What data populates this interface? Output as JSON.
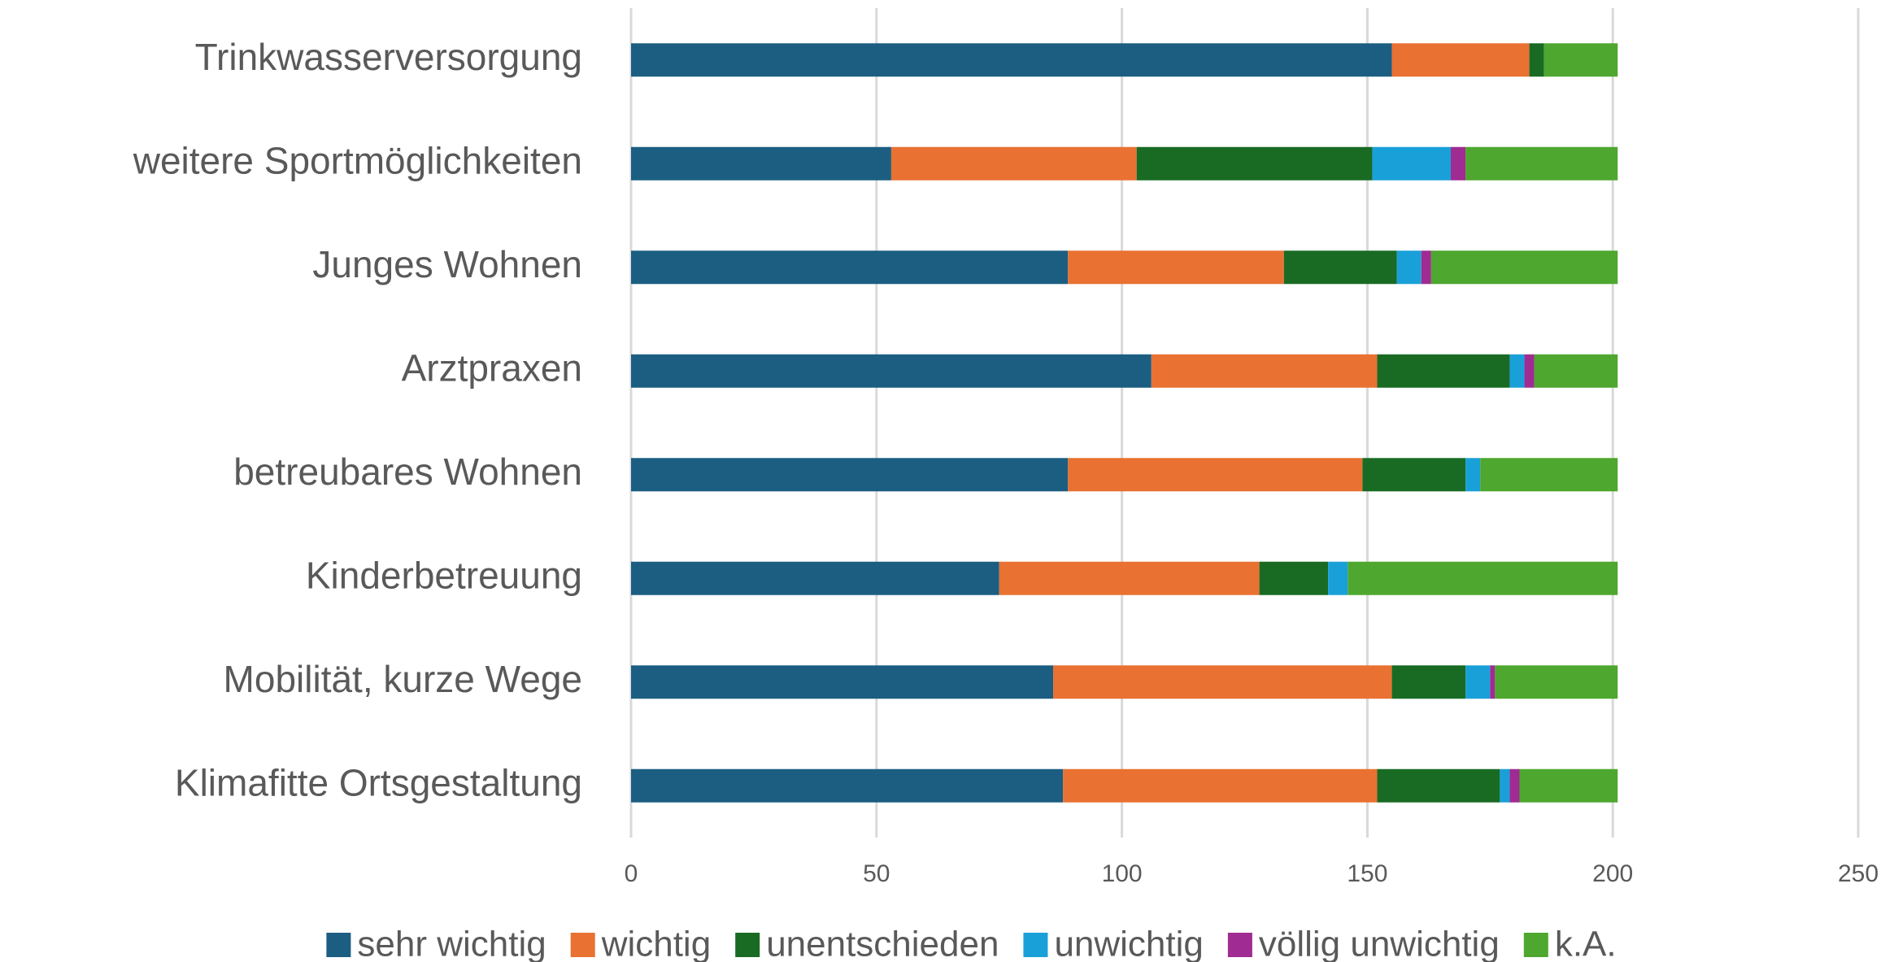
{
  "chart_data": {
    "type": "stacked_barh",
    "categories": [
      "Trinkwasserversorgung",
      "weitere Sportmöglichkeiten",
      "Junges Wohnen",
      "Arztpraxen",
      "betreubares Wohnen",
      "Kinderbetreuung",
      "Mobilität, kurze Wege",
      "Klimafitte Ortsgestaltung"
    ],
    "series": [
      {
        "name": "sehr wichtig",
        "color": "#1b5e82",
        "values": [
          155,
          53,
          89,
          106,
          89,
          75,
          86,
          88
        ]
      },
      {
        "name": "wichtig",
        "color": "#e97132",
        "values": [
          28,
          50,
          44,
          46,
          60,
          53,
          69,
          64
        ]
      },
      {
        "name": "unentschieden",
        "color": "#196b24",
        "values": [
          3,
          48,
          23,
          27,
          21,
          14,
          15,
          25
        ]
      },
      {
        "name": "unwichtig",
        "color": "#1aa0d8",
        "values": [
          0,
          16,
          5,
          3,
          3,
          4,
          5,
          2
        ]
      },
      {
        "name": "völlig unwichtig",
        "color": "#a02b93",
        "values": [
          0,
          3,
          2,
          2,
          0,
          0,
          1,
          2
        ]
      },
      {
        "name": "k.A.",
        "color": "#4ea72e",
        "values": [
          15,
          31,
          38,
          17,
          28,
          55,
          25,
          20
        ]
      }
    ],
    "xlim": [
      0,
      250
    ],
    "xticks": [
      0,
      50,
      100,
      150,
      200,
      250
    ],
    "grid": true,
    "legend": "bottom"
  }
}
